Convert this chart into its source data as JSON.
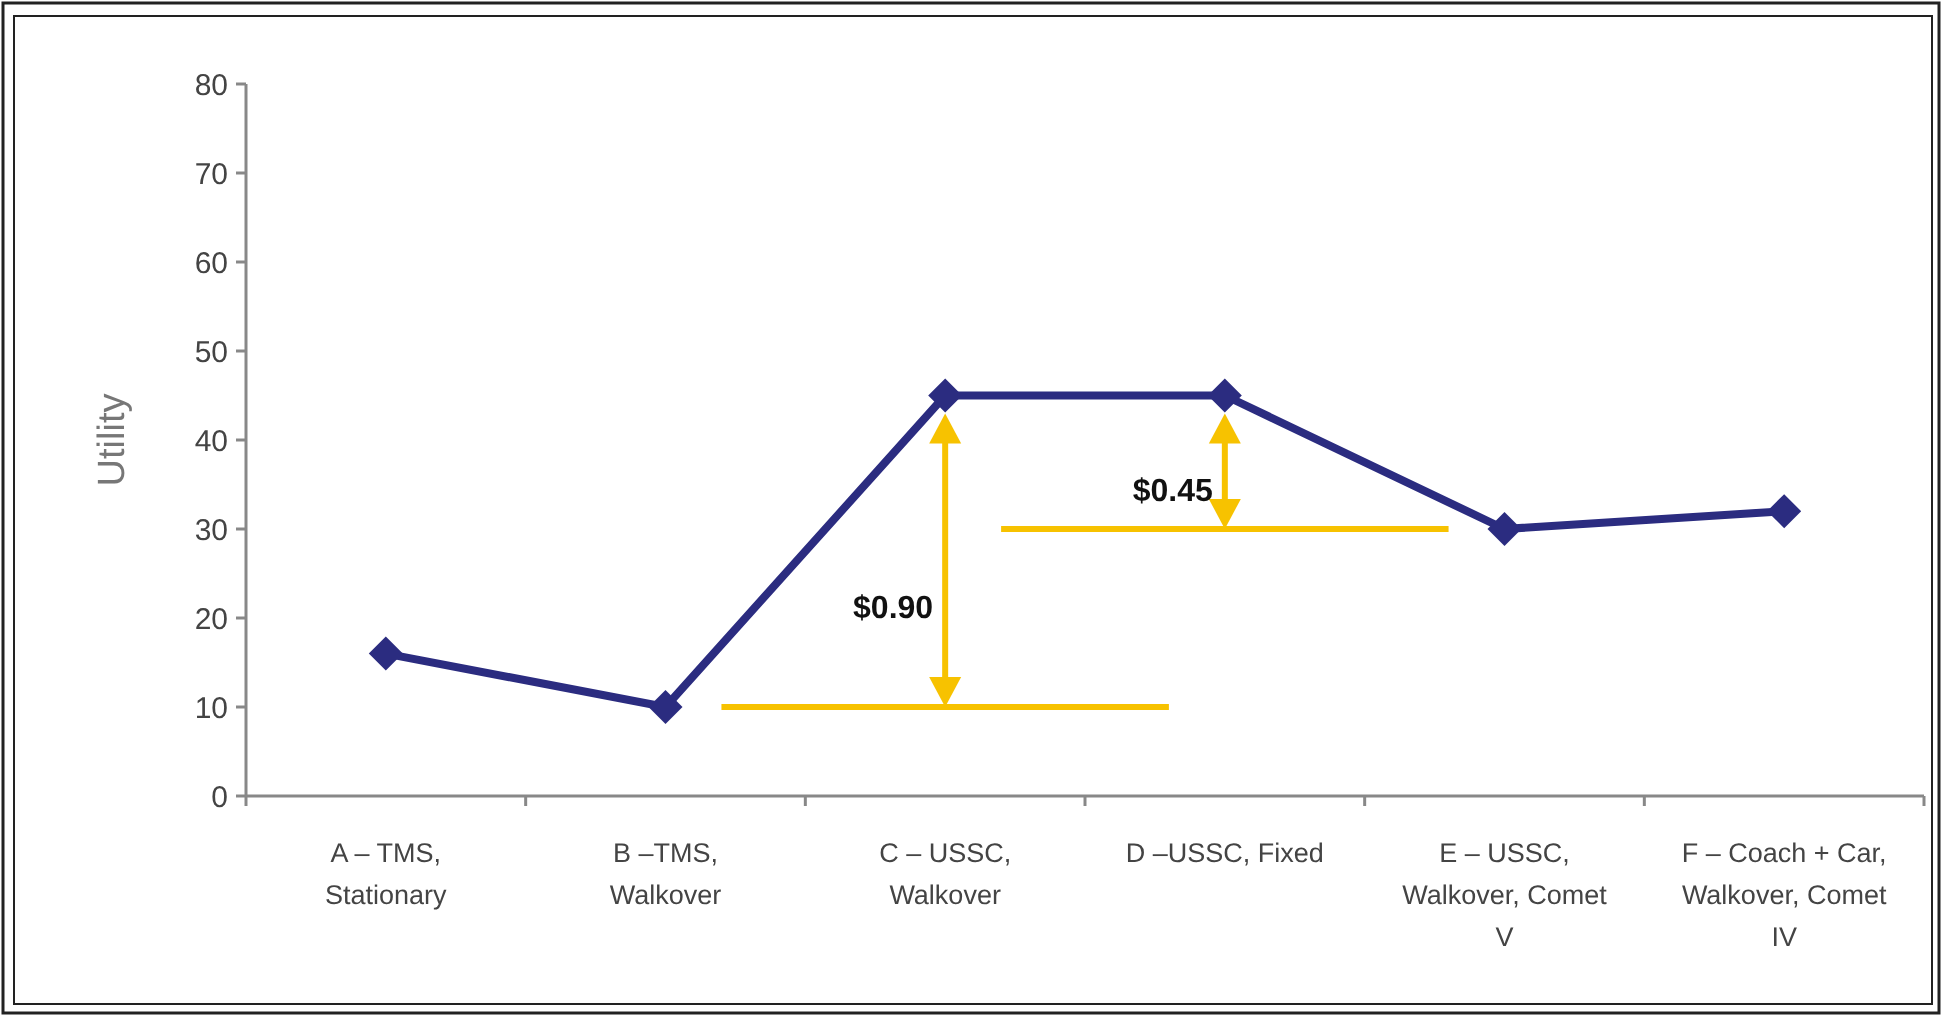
{
  "chart_data": {
    "type": "line",
    "categories": [
      "A – TMS, Stationary",
      "B –TMS, Walkover",
      "C – USSC, Walkover",
      "D –USSC, Fixed",
      "E – USSC, Walkover, Comet V",
      "F – Coach + Car, Walkover, Comet IV"
    ],
    "series": [
      {
        "color": "#2b2c80",
        "values": [
          16,
          10,
          45,
          45,
          30,
          32
        ]
      }
    ],
    "ylabel": "Utility",
    "ylim": [
      0,
      80
    ],
    "yticks": [
      0,
      10,
      20,
      30,
      40,
      50,
      60,
      70,
      80
    ],
    "marker": "diamond",
    "ref_lines": [
      {
        "axis": "y",
        "value": 10,
        "color": "#f7c200"
      },
      {
        "axis": "y",
        "value": 30,
        "color": "#f7c200"
      }
    ],
    "annotations": [
      "$0.90",
      "$0.45"
    ]
  }
}
